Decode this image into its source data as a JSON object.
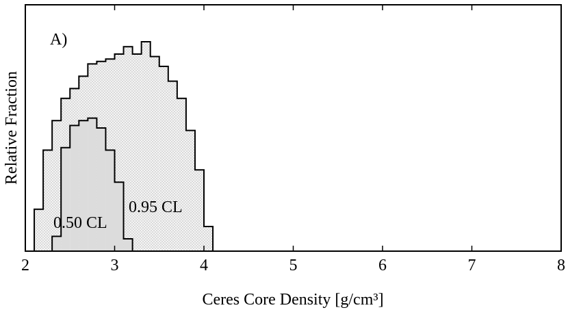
{
  "chart_data": {
    "type": "histogram",
    "panel_label": "A)",
    "xlabel": "Ceres Core Density [g/cm³]",
    "ylabel": "Relative Fraction",
    "xlim": [
      2,
      8
    ],
    "xticks": [
      2,
      3,
      4,
      5,
      6,
      7,
      8
    ],
    "ylim": [
      0,
      1
    ],
    "series": [
      {
        "name": "0.95 CL",
        "color": "#d8d8d8",
        "pattern": "dots",
        "bins": [
          2.1,
          2.2,
          2.3,
          2.4,
          2.5,
          2.6,
          2.7,
          2.8,
          2.9,
          3.0,
          3.1,
          3.2,
          3.3,
          3.4,
          3.5,
          3.6,
          3.7,
          3.8,
          3.9,
          4.0,
          4.1
        ],
        "values": [
          0.17,
          0.41,
          0.53,
          0.62,
          0.66,
          0.71,
          0.76,
          0.77,
          0.78,
          0.8,
          0.83,
          0.8,
          0.85,
          0.79,
          0.75,
          0.69,
          0.62,
          0.49,
          0.33,
          0.1
        ]
      },
      {
        "name": "0.50 CL",
        "color": "#dcdcdc",
        "pattern": "solid",
        "bins": [
          2.3,
          2.4,
          2.5,
          2.6,
          2.7,
          2.8,
          2.9,
          3.0,
          3.1,
          3.2
        ],
        "values": [
          0.06,
          0.42,
          0.51,
          0.53,
          0.54,
          0.5,
          0.41,
          0.28,
          0.05
        ]
      }
    ]
  }
}
